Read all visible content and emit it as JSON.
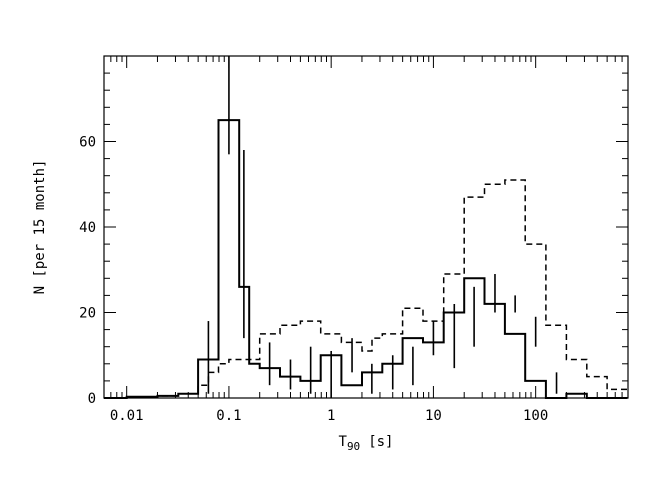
{
  "chart_data": {
    "type": "histogram",
    "x_scale": "log",
    "xlim": [
      0.006,
      800
    ],
    "ylim": [
      0,
      80
    ],
    "xlabel": "T",
    "xlabel_sub": "90",
    "xlabel_unit": "[s]",
    "ylabel": "N [per 15 month]",
    "x_tick_labels": [
      "0.01",
      "0.1",
      "1",
      "10",
      "100"
    ],
    "x_tick_values": [
      0.01,
      0.1,
      1,
      10,
      100
    ],
    "y_tick_labels": [
      "0",
      "20",
      "40",
      "60"
    ],
    "y_tick_values": [
      0,
      20,
      40,
      60
    ],
    "grid": false,
    "legend": "none",
    "bin_edges": [
      0.006,
      0.0079,
      0.01,
      0.0126,
      0.0158,
      0.02,
      0.0251,
      0.0316,
      0.0398,
      0.05,
      0.063,
      0.079,
      0.1,
      0.126,
      0.158,
      0.2,
      0.251,
      0.316,
      0.398,
      0.5,
      0.63,
      0.79,
      1.0,
      1.26,
      1.58,
      2.0,
      2.51,
      3.16,
      3.98,
      5.0,
      6.3,
      7.9,
      10,
      12.6,
      15.8,
      20,
      25.1,
      31.6,
      39.8,
      50,
      63,
      79,
      100,
      126,
      158,
      200,
      251,
      316,
      398,
      500,
      630,
      790
    ],
    "series": [
      {
        "style": "solid",
        "edges": [
          0.006,
          0.01,
          0.02,
          0.032,
          0.05,
          0.063,
          0.079,
          0.1,
          0.126,
          0.158,
          0.2,
          0.316,
          0.5,
          0.79,
          1.26,
          2.0,
          3.16,
          5.0,
          7.9,
          12.6,
          20,
          31.6,
          50,
          79,
          126,
          200,
          316,
          500,
          790
        ],
        "values": [
          0,
          0.3,
          0.5,
          1,
          9,
          9,
          65,
          65,
          26,
          8,
          7,
          5,
          4,
          10,
          3,
          6,
          8,
          14,
          13,
          20,
          28,
          22,
          15,
          4,
          0,
          1,
          0,
          0
        ],
        "errors": [
          {
            "x": 0.063,
            "y": 9,
            "lo": 1,
            "hi": 18
          },
          {
            "x": 0.1,
            "y": 65,
            "lo": 57,
            "hi": 80
          },
          {
            "x": 0.14,
            "y": 26,
            "lo": 14,
            "hi": 58
          },
          {
            "x": 0.25,
            "y": 8,
            "lo": 3,
            "hi": 13
          },
          {
            "x": 0.4,
            "y": 5,
            "lo": 2,
            "hi": 9
          },
          {
            "x": 0.63,
            "y": 5,
            "lo": 1,
            "hi": 12
          },
          {
            "x": 1.0,
            "y": 4,
            "lo": 0,
            "hi": 11
          },
          {
            "x": 1.6,
            "y": 10,
            "lo": 6,
            "hi": 14
          },
          {
            "x": 2.5,
            "y": 3,
            "lo": 1,
            "hi": 8
          },
          {
            "x": 4.0,
            "y": 6,
            "lo": 2,
            "hi": 10
          },
          {
            "x": 6.3,
            "y": 8,
            "lo": 3,
            "hi": 12
          },
          {
            "x": 10,
            "y": 14,
            "lo": 10,
            "hi": 18
          },
          {
            "x": 16,
            "y": 13,
            "lo": 7,
            "hi": 22
          },
          {
            "x": 25,
            "y": 20,
            "lo": 12,
            "hi": 26
          },
          {
            "x": 40,
            "y": 28,
            "lo": 20,
            "hi": 29
          },
          {
            "x": 63,
            "y": 22,
            "lo": 20,
            "hi": 24
          },
          {
            "x": 100,
            "y": 15,
            "lo": 12,
            "hi": 19
          },
          {
            "x": 160,
            "y": 4,
            "lo": 1,
            "hi": 6
          }
        ]
      },
      {
        "style": "dashed",
        "edges": [
          0.006,
          0.01,
          0.02,
          0.032,
          0.05,
          0.063,
          0.079,
          0.1,
          0.126,
          0.158,
          0.2,
          0.251,
          0.316,
          0.5,
          0.79,
          1.26,
          2.0,
          2.51,
          3.16,
          5.0,
          7.9,
          12.6,
          20,
          31.6,
          50,
          79,
          126,
          200,
          316,
          500,
          790
        ],
        "values": [
          0,
          0.2,
          0.5,
          1,
          3,
          6,
          8,
          9,
          9,
          9,
          15,
          15,
          17,
          18,
          15,
          13,
          11,
          14,
          15,
          21,
          18,
          29,
          47,
          50,
          51,
          36,
          17,
          9,
          5,
          2
        ]
      }
    ]
  }
}
